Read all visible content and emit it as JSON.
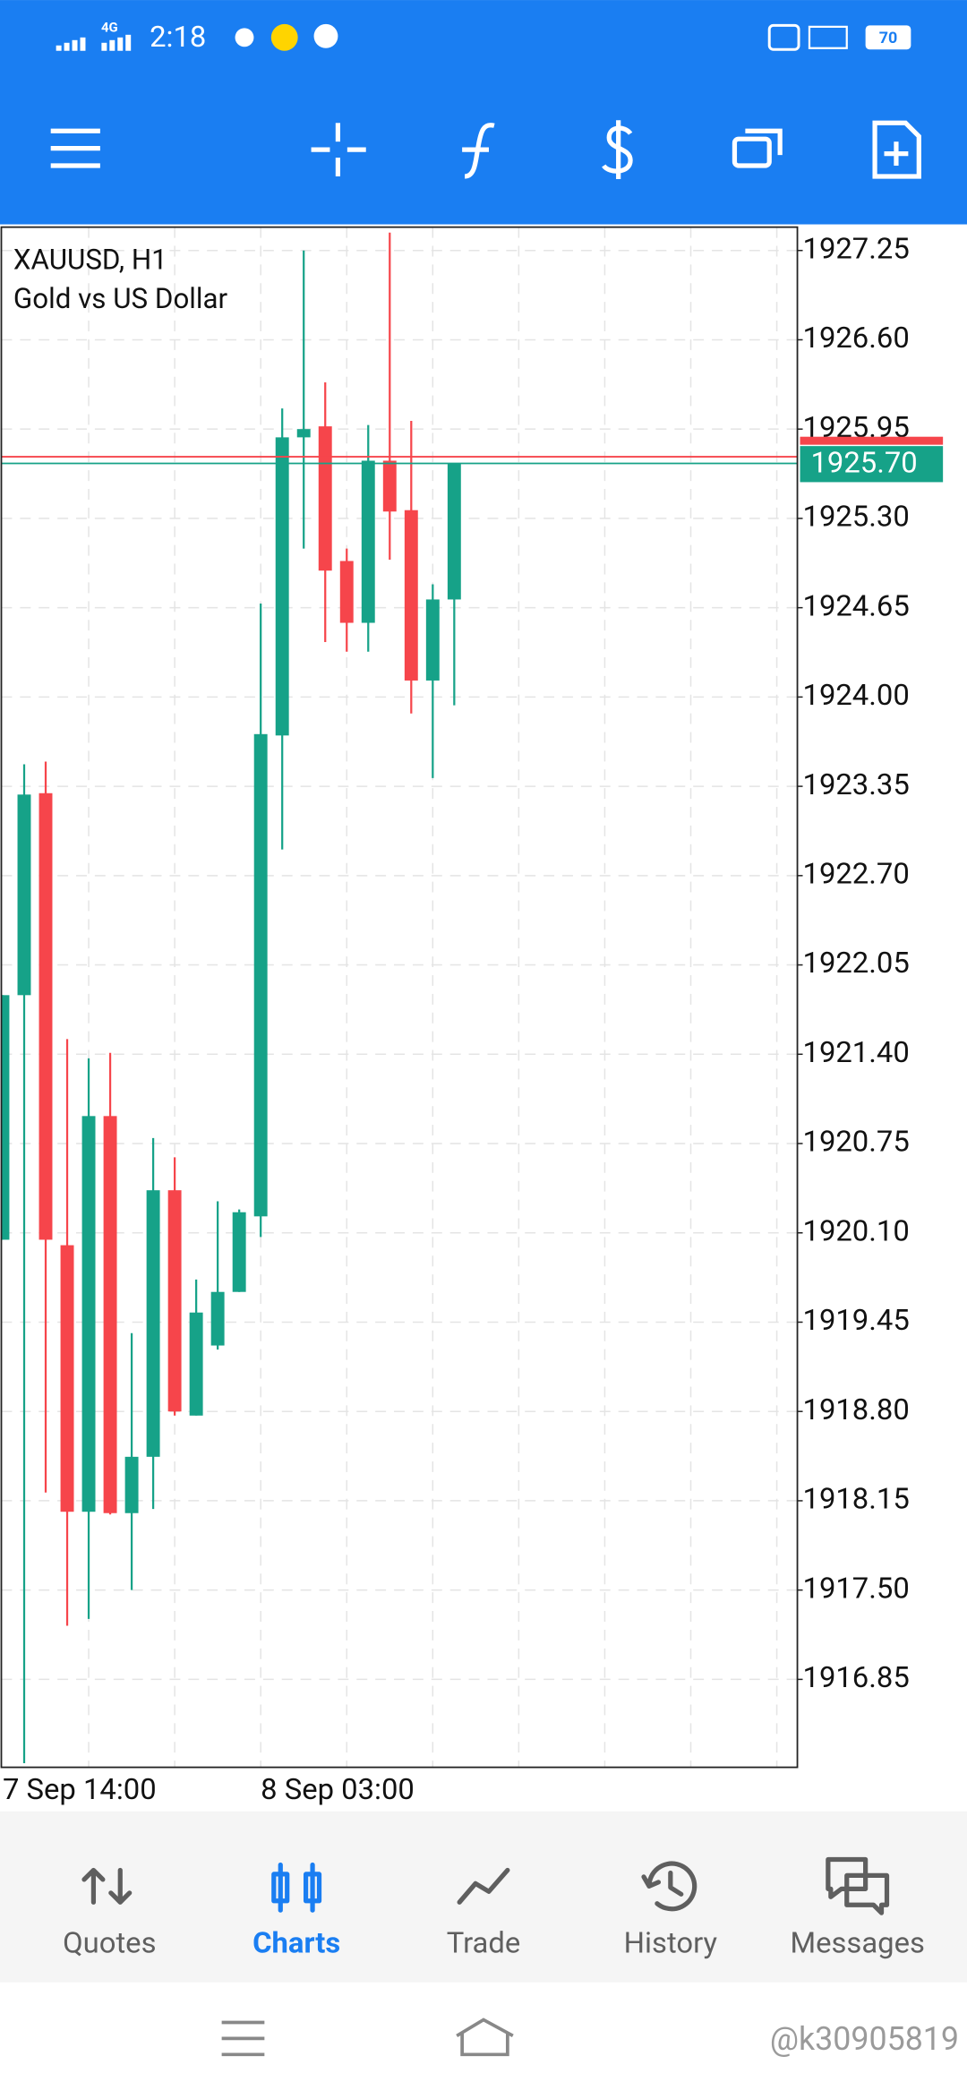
{
  "status_bar": {
    "network": "4G",
    "time": "2:18",
    "battery": "70"
  },
  "chart_data": {
    "type": "candlestick",
    "title": "XAUUSD, H1",
    "subtitle": "Gold vs US Dollar",
    "categories": [
      "7 Sep 14:00",
      null,
      null,
      null,
      null,
      null,
      null,
      null,
      null,
      null,
      null,
      null,
      "8 Sep 03:00",
      null,
      null,
      null,
      null,
      null,
      null,
      null,
      null,
      null
    ],
    "open": [
      1920.05,
      1921.83,
      1923.3,
      1920.01,
      1918.07,
      1920.95,
      1918.06,
      1918.47,
      1920.41,
      1918.77,
      1919.28,
      1919.67,
      1920.22,
      1923.72,
      1925.89,
      1925.97,
      1924.99,
      1924.54,
      1925.72,
      1925.36,
      1924.12,
      1924.71
    ],
    "high": [
      1921.83,
      1923.51,
      1923.53,
      1921.51,
      1921.37,
      1921.41,
      1919.37,
      1920.79,
      1920.65,
      1919.76,
      1920.33,
      1920.27,
      1924.68,
      1926.1,
      1927.25,
      1926.29,
      1925.08,
      1925.98,
      1927.38,
      1926.01,
      1924.82,
      1925.7
    ],
    "low": [
      1920.05,
      1916.24,
      1918.21,
      1917.24,
      1917.29,
      1918.05,
      1917.5,
      1918.09,
      1918.77,
      1918.77,
      1919.25,
      1919.67,
      1920.07,
      1922.89,
      1925.08,
      1924.4,
      1924.33,
      1924.33,
      1925.0,
      1923.88,
      1923.41,
      1923.94
    ],
    "close": [
      1921.83,
      1923.29,
      1920.05,
      1918.07,
      1920.95,
      1918.06,
      1918.47,
      1920.41,
      1918.8,
      1919.52,
      1919.67,
      1920.25,
      1923.73,
      1925.89,
      1925.95,
      1924.92,
      1924.54,
      1925.72,
      1925.35,
      1924.12,
      1924.71,
      1925.7
    ],
    "up_color": "#16a288",
    "down_color": "#f6454b",
    "ylim": [
      1916.21,
      1927.42
    ],
    "yticks": [
      1927.25,
      {
        "value": 1926.6,
        "label": "1926.60"
      },
      1925.95,
      {
        "value": 1925.3,
        "label": "1925.30"
      },
      1924.65,
      {
        "value": 1924.0,
        "label": "1924.00"
      },
      1923.35,
      {
        "value": 1922.7,
        "label": "1922.70"
      },
      1922.05,
      {
        "value": 1921.4,
        "label": "1921.40"
      },
      1920.75,
      {
        "value": 1920.1,
        "label": "1920.10"
      },
      1919.45,
      {
        "value": 1918.8,
        "label": "1918.80"
      },
      1918.15,
      {
        "value": 1917.5,
        "label": "1917.50"
      },
      1916.85
    ],
    "grid": true,
    "current_price": {
      "value": 1925.7,
      "label": "1925.70"
    }
  },
  "tabs": [
    {
      "label": "Quotes"
    },
    {
      "label": "Charts"
    },
    {
      "label": "Trade"
    },
    {
      "label": "History"
    },
    {
      "label": "Messages"
    }
  ],
  "active_tab": 1,
  "watermark": "@k30905819"
}
